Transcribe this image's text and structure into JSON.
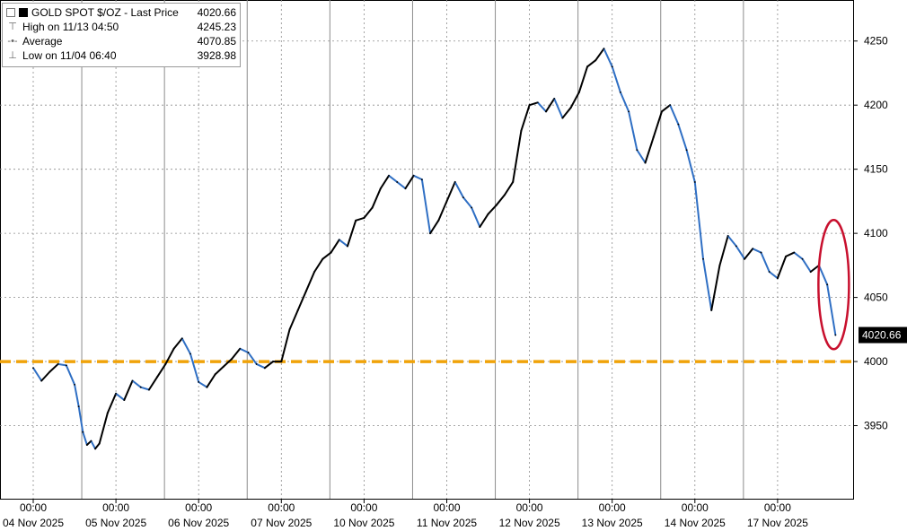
{
  "legend": {
    "title": "GOLD SPOT $/OZ - Last Price",
    "last_value": "4020.66",
    "high_label": "High on 11/13 04:50",
    "high_value": "4245.23",
    "avg_label": "Average",
    "avg_value": "4070.85",
    "low_label": "Low on 11/04 06:40",
    "low_value": "3928.98"
  },
  "colors": {
    "price_line": "#000000",
    "down_segment": "#2f6fc4",
    "reference_line": "#f0a30a",
    "highlight_circle": "#c8102e",
    "grid": "#8c8c8c",
    "last_price_badge_bg": "#000000"
  },
  "chart_data": {
    "type": "line",
    "title": "GOLD SPOT $/OZ - Last Price",
    "ylim": [
      3900,
      4275
    ],
    "y_ticks": [
      3950,
      4000,
      4050,
      4100,
      4150,
      4200,
      4250
    ],
    "grid": "vertical dotted at each day, dashed at each 00:00",
    "x_day_labels": [
      "04 Nov 2025",
      "05 Nov 2025",
      "06 Nov 2025",
      "07 Nov 2025",
      "10 Nov 2025",
      "11 Nov 2025",
      "12 Nov 2025",
      "13 Nov 2025",
      "14 Nov 2025",
      "17 Nov 2025"
    ],
    "x_time_label": "00:00",
    "last_price_label": "4020.66",
    "reference_level": 4000,
    "series": [
      {
        "x": [
          0.0,
          0.1,
          0.2,
          0.3,
          0.4,
          0.5,
          0.55,
          0.6,
          0.65,
          0.7,
          0.75,
          0.8,
          0.9,
          1.0,
          1.1,
          1.2,
          1.3,
          1.4,
          1.5,
          1.6,
          1.7,
          1.8,
          1.9,
          2.0,
          2.1,
          2.2,
          2.3,
          2.4,
          2.5,
          2.6,
          2.7,
          2.8,
          2.9,
          3.0,
          3.1,
          3.2,
          3.3,
          3.4,
          3.5,
          3.6,
          3.7,
          3.8,
          3.9,
          4.0,
          4.1,
          4.2,
          4.3,
          4.4,
          4.5,
          4.6,
          4.7,
          4.8,
          4.9,
          5.0,
          5.1,
          5.2,
          5.3,
          5.4,
          5.5,
          5.6,
          5.7,
          5.8,
          5.9,
          6.0,
          6.1,
          6.2,
          6.3,
          6.4,
          6.5,
          6.6,
          6.7,
          6.8,
          6.9,
          7.0,
          7.1,
          7.2,
          7.3,
          7.4,
          7.5,
          7.6,
          7.7,
          7.8,
          7.9,
          8.0,
          8.1,
          8.2,
          8.3,
          8.4,
          8.5,
          8.6,
          8.7,
          8.8,
          8.9,
          9.0,
          9.1,
          9.2,
          9.3,
          9.4,
          9.5,
          9.6,
          9.7
        ],
        "values": [
          3995,
          3985,
          3992,
          3998,
          3997,
          3982,
          3965,
          3945,
          3935,
          3938,
          3932,
          3936,
          3960,
          3975,
          3970,
          3985,
          3980,
          3978,
          3988,
          3998,
          4010,
          4018,
          4006,
          3984,
          3980,
          3990,
          3996,
          4002,
          4010,
          4007,
          3998,
          3995,
          4000,
          4000,
          4025,
          4040,
          4055,
          4070,
          4080,
          4085,
          4095,
          4090,
          4110,
          4112,
          4120,
          4135,
          4145,
          4140,
          4135,
          4145,
          4142,
          4100,
          4110,
          4125,
          4140,
          4128,
          4120,
          4105,
          4115,
          4122,
          4130,
          4140,
          4180,
          4200,
          4202,
          4195,
          4205,
          4190,
          4198,
          4210,
          4230,
          4235,
          4244,
          4230,
          4210,
          4195,
          4165,
          4155,
          4175,
          4195,
          4200,
          4185,
          4165,
          4140,
          4080,
          4040,
          4075,
          4098,
          4090,
          4080,
          4088,
          4085,
          4070,
          4065,
          4082,
          4085,
          4080,
          4070,
          4075,
          4060,
          4020.66
        ]
      }
    ]
  }
}
